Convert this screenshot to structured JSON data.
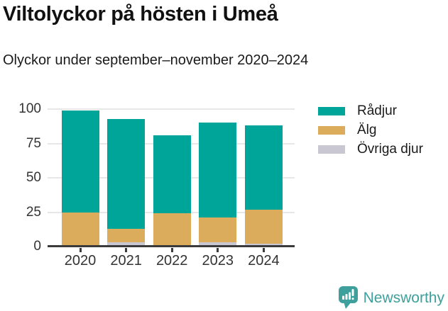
{
  "header": {
    "title": "Viltolyckor på hösten i Umeå",
    "subtitle": "Olyckor under september–november 2020–2024"
  },
  "chart_data": {
    "type": "bar",
    "stacked": true,
    "title": "Viltolyckor på hösten i Umeå",
    "subtitle": "Olyckor under september–november 2020–2024",
    "categories": [
      "2020",
      "2021",
      "2022",
      "2023",
      "2024"
    ],
    "series": [
      {
        "name": "Rådjur",
        "color": "#00a59a",
        "values": [
          74,
          80,
          57,
          69,
          61
        ]
      },
      {
        "name": "Älg",
        "color": "#dbac5b",
        "values": [
          24,
          10,
          23,
          18,
          25
        ]
      },
      {
        "name": "Övriga djur",
        "color": "#c9c7d1",
        "values": [
          1,
          3,
          1,
          3,
          2
        ]
      }
    ],
    "yticks": [
      0,
      25,
      50,
      75,
      100
    ],
    "ylim": [
      0,
      100
    ],
    "xlabel": "",
    "ylabel": "",
    "grid": "horizontal",
    "legend_position": "top-right"
  },
  "branding": {
    "name": "Newsworthy",
    "logo_icon": "bar-chart-speech-bubble-icon",
    "color": "#3ea09c"
  }
}
